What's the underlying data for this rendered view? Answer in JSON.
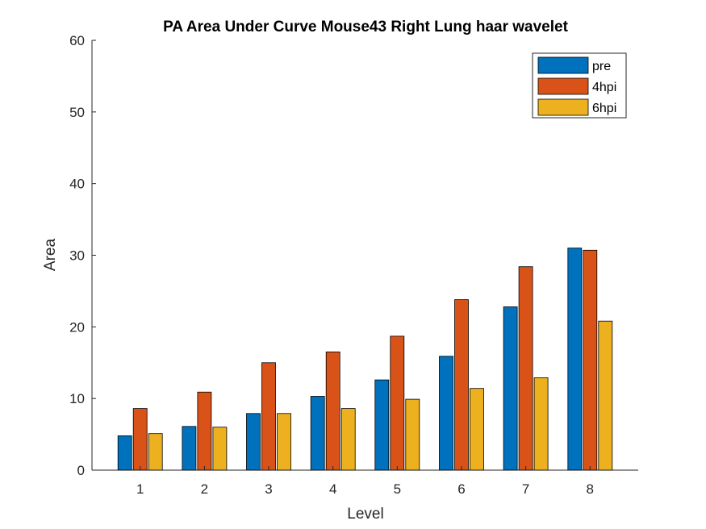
{
  "chart_data": {
    "type": "bar",
    "title": "PA Area Under Curve Mouse43 Right Lung haar wavelet",
    "xlabel": "Level",
    "ylabel": "Area",
    "categories": [
      "1",
      "2",
      "3",
      "4",
      "5",
      "6",
      "7",
      "8"
    ],
    "ylim": [
      0,
      60
    ],
    "yticks": [
      0,
      10,
      20,
      30,
      40,
      50,
      60
    ],
    "legend_position": "top-right",
    "series": [
      {
        "name": "pre",
        "color": "#0072BD",
        "values": [
          4.8,
          6.1,
          7.9,
          10.3,
          12.6,
          15.9,
          22.8,
          31.0
        ]
      },
      {
        "name": "4hpi",
        "color": "#D95319",
        "values": [
          8.6,
          10.9,
          15.0,
          16.5,
          18.7,
          23.8,
          28.4,
          30.7
        ]
      },
      {
        "name": "6hpi",
        "color": "#EDB120",
        "values": [
          5.1,
          6.0,
          7.9,
          8.6,
          9.9,
          11.4,
          12.9,
          20.8
        ]
      }
    ]
  }
}
